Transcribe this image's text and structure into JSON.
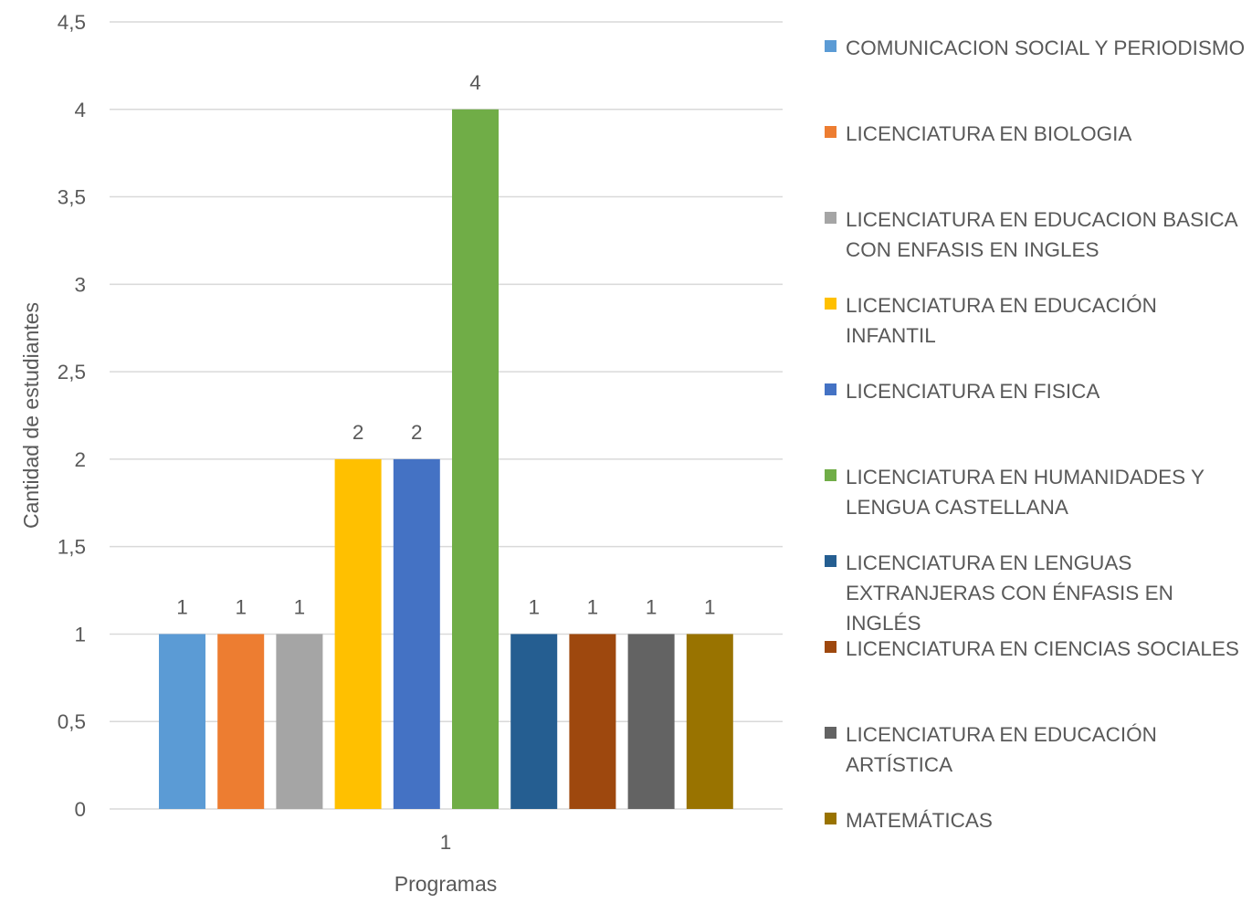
{
  "chart_data": {
    "type": "bar",
    "xlabel": "Programas",
    "ylabel": "Cantidad de estudiantes",
    "categories": [
      "1"
    ],
    "ylim": [
      0,
      4.5
    ],
    "yticks": [
      "0",
      "0,5",
      "1",
      "1,5",
      "2",
      "2,5",
      "3",
      "3,5",
      "4",
      "4,5"
    ],
    "grid": true,
    "legend_position": "right",
    "series": [
      {
        "name": "COMUNICACION SOCIAL Y PERIODISMO",
        "values": [
          1
        ],
        "label": "1",
        "color": "#5B9BD5"
      },
      {
        "name": "LICENCIATURA EN BIOLOGIA",
        "values": [
          1
        ],
        "label": "1",
        "color": "#ED7D31"
      },
      {
        "name": "LICENCIATURA EN EDUCACION BASICA CON ENFASIS EN INGLES",
        "values": [
          1
        ],
        "label": "1",
        "color": "#A5A5A5"
      },
      {
        "name": "LICENCIATURA EN EDUCACIÓN INFANTIL",
        "values": [
          2
        ],
        "label": "2",
        "color": "#FFC000"
      },
      {
        "name": "LICENCIATURA EN FISICA",
        "values": [
          2
        ],
        "label": "2",
        "color": "#4472C4"
      },
      {
        "name": "LICENCIATURA EN HUMANIDADES Y LENGUA CASTELLANA",
        "values": [
          4
        ],
        "label": "4",
        "color": "#70AD47"
      },
      {
        "name": "LICENCIATURA EN LENGUAS EXTRANJERAS CON ÉNFASIS EN INGLÉS",
        "values": [
          1
        ],
        "label": "1",
        "color": "#255E91"
      },
      {
        "name": "LICENCIATURA EN CIENCIAS SOCIALES",
        "values": [
          1
        ],
        "label": "1",
        "color": "#9E480E"
      },
      {
        "name": "LICENCIATURA EN EDUCACIÓN ARTÍSTICA",
        "values": [
          1
        ],
        "label": "1",
        "color": "#636363"
      },
      {
        "name": "MATEMÁTICAS",
        "values": [
          1
        ],
        "label": "1",
        "color": "#997300"
      }
    ]
  }
}
